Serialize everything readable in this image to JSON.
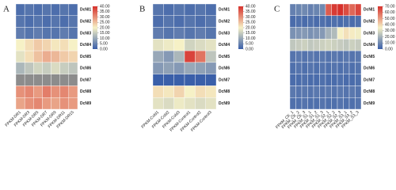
{
  "chart_data": [
    {
      "type": "heatmap",
      "panel": "A",
      "rows": [
        "DcNI1",
        "DcNI2",
        "DcNI3",
        "DcNI4",
        "DcNI5",
        "DcNI6",
        "DcNI7",
        "DcNI8",
        "DcNI9"
      ],
      "columns": [
        "FPKM-DR1",
        "FPKM-DR3",
        "FPKM-DR5",
        "FPKM-DR7",
        "FPKM-DR9",
        "FPKM-DR11",
        "FPKM-DR15"
      ],
      "values": [
        [
          2,
          3,
          2,
          3,
          2,
          3,
          2
        ],
        [
          3,
          2,
          3,
          2,
          3,
          2,
          3
        ],
        [
          4,
          3,
          4,
          3,
          3,
          4,
          3
        ],
        [
          20,
          22,
          24,
          23,
          21,
          22,
          20
        ],
        [
          18,
          22,
          25,
          27,
          26,
          24,
          23
        ],
        [
          12,
          14,
          16,
          15,
          17,
          15,
          14
        ],
        [
          null,
          null,
          null,
          null,
          null,
          null,
          null
        ],
        [
          30,
          31,
          29,
          32,
          30,
          31,
          29
        ],
        [
          28,
          30,
          31,
          29,
          28,
          30,
          29
        ]
      ],
      "colors": [
        "#3a5fa9",
        "#f6f1c6",
        "#d6302b"
      ],
      "null_color": "#8c8c8c",
      "zlim": [
        0,
        40
      ],
      "zticks": [
        {
          "value": 40,
          "label": "40.00"
        },
        {
          "value": 35,
          "label": "35.00"
        },
        {
          "value": 30,
          "label": "30.00"
        },
        {
          "value": 25,
          "label": "25.00"
        },
        {
          "value": 20,
          "label": "20.00"
        },
        {
          "value": 15,
          "label": "15.00"
        },
        {
          "value": 10,
          "label": "10.00"
        },
        {
          "value": 5,
          "label": "5.00"
        },
        {
          "value": 0,
          "label": "0.00"
        }
      ]
    },
    {
      "type": "heatmap",
      "panel": "B",
      "rows": [
        "DcNI1",
        "DcNI2",
        "DcNI3",
        "DcNI4",
        "DcNI5",
        "DcNI6",
        "DcNI7",
        "DcNI8",
        "DcNI9"
      ],
      "columns": [
        "FPKM-Cold1",
        "FPKM-Cold2",
        "FPKM-Cold3",
        "FPKM-Control1",
        "FPKM-Control2",
        "FPKM-Control3"
      ],
      "values": [
        [
          3,
          2,
          3,
          2,
          3,
          2
        ],
        [
          2,
          3,
          2,
          3,
          2,
          3
        ],
        [
          4,
          3,
          4,
          3,
          4,
          3
        ],
        [
          18,
          19,
          20,
          16,
          17,
          18
        ],
        [
          10,
          8,
          12,
          38,
          33,
          14
        ],
        [
          8,
          9,
          8,
          10,
          9,
          8
        ],
        [
          0,
          0,
          0,
          0,
          0,
          0
        ],
        [
          22,
          21,
          23,
          20,
          22,
          21
        ],
        [
          18,
          17,
          19,
          18,
          17,
          18
        ]
      ],
      "colors": [
        "#3a5fa9",
        "#f6f1c6",
        "#d6302b"
      ],
      "null_color": "#8c8c8c",
      "zlim": [
        0,
        40
      ],
      "zticks": [
        {
          "value": 40,
          "label": "40.00"
        },
        {
          "value": 35,
          "label": "35.00"
        },
        {
          "value": 30,
          "label": "30.00"
        },
        {
          "value": 25,
          "label": "25.00"
        },
        {
          "value": 20,
          "label": "20.00"
        },
        {
          "value": 15,
          "label": "15.00"
        },
        {
          "value": 10,
          "label": "10.00"
        },
        {
          "value": 5,
          "label": "5.00"
        },
        {
          "value": 0,
          "label": "0.00"
        }
      ]
    },
    {
      "type": "heatmap",
      "panel": "C",
      "rows": [
        "DcNI1",
        "DcNI2",
        "DcNI3",
        "DcNI4",
        "DcNI5",
        "DcNI6",
        "DcNI7",
        "DcNI8",
        "DcNI9"
      ],
      "columns": [
        "FPKM_CK_1",
        "FPKM_CK_2",
        "FPKM_CK_3",
        "FPKM_S1_1",
        "FPKM_S1_2",
        "FPKM_S1_3",
        "FPKM_S2_1",
        "FPKM_S2_2",
        "FPKM_S2_3",
        "FPKM_S3_1",
        "FPKM_S3_2",
        "FPKM_S3_3"
      ],
      "values": [
        [
          8,
          9,
          10,
          8,
          9,
          10,
          62,
          68,
          70,
          65,
          60,
          66
        ],
        [
          3,
          4,
          3,
          4,
          3,
          4,
          3,
          4,
          3,
          4,
          3,
          4
        ],
        [
          12,
          13,
          14,
          12,
          13,
          14,
          20,
          22,
          35,
          38,
          36,
          34
        ],
        [
          25,
          26,
          27,
          25,
          26,
          27,
          28,
          27,
          26,
          25,
          27,
          26
        ],
        [
          5,
          6,
          5,
          6,
          5,
          6,
          5,
          6,
          5,
          6,
          5,
          6
        ],
        [
          4,
          5,
          4,
          5,
          4,
          5,
          4,
          5,
          4,
          5,
          4,
          5
        ],
        [
          3,
          3,
          4,
          3,
          3,
          4,
          3,
          3,
          4,
          3,
          3,
          4
        ],
        [
          6,
          5,
          6,
          5,
          6,
          5,
          6,
          5,
          6,
          5,
          6,
          5
        ],
        [
          4,
          4,
          5,
          4,
          4,
          5,
          4,
          4,
          5,
          4,
          4,
          5
        ]
      ],
      "colors": [
        "#3a5fa9",
        "#f6f1c6",
        "#d6302b"
      ],
      "null_color": "#8c8c8c",
      "zlim": [
        0,
        70
      ],
      "zticks": [
        {
          "value": 70,
          "label": "70.00"
        },
        {
          "value": 60,
          "label": "60.00"
        },
        {
          "value": 50,
          "label": "50.00"
        },
        {
          "value": 40,
          "label": "40.00"
        },
        {
          "value": 30,
          "label": "30.00"
        },
        {
          "value": 20,
          "label": "20.00"
        },
        {
          "value": 10,
          "label": "10.00"
        },
        {
          "value": 0,
          "label": "0.00"
        }
      ]
    }
  ]
}
